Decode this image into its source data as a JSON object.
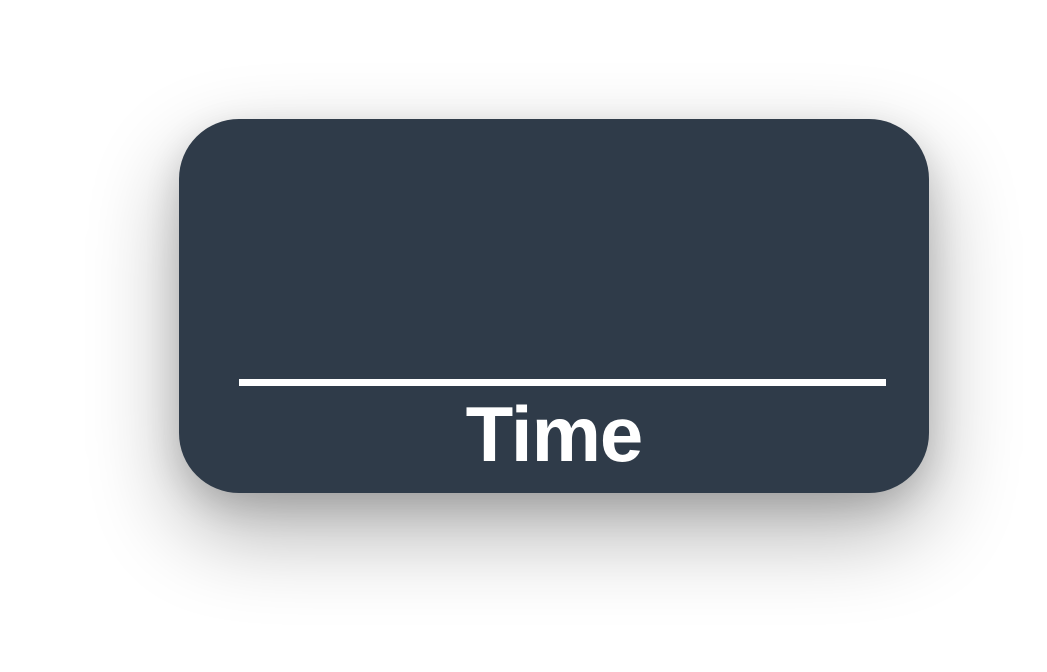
{
  "widget": {
    "label": "Time"
  },
  "colors": {
    "card_background": "#2f3b49",
    "foreground": "#ffffff"
  }
}
